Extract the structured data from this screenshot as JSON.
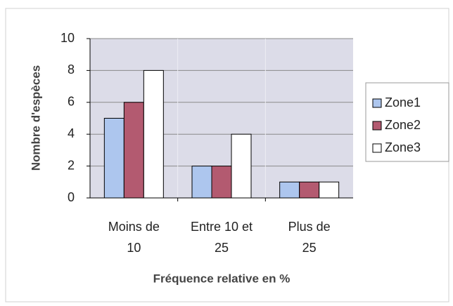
{
  "chart_data": {
    "type": "bar",
    "categories": [
      "Moins de 10",
      "Entre 10 et 25",
      "Plus de 25"
    ],
    "series": [
      {
        "name": "Zone1",
        "color": "#adc6ee",
        "values": [
          5,
          2,
          1
        ]
      },
      {
        "name": "Zone2",
        "color": "#b35a70",
        "values": [
          6,
          2,
          1
        ]
      },
      {
        "name": "Zone3",
        "color": "#ffffff",
        "values": [
          8,
          4,
          1
        ]
      }
    ],
    "ylim": [
      0,
      10
    ],
    "yticks": [
      0,
      2,
      4,
      6,
      8,
      10
    ],
    "grid": true,
    "legend": "right",
    "ylabel": "Nombre d'espèces",
    "xlabel": "Fréquence relative en %"
  }
}
